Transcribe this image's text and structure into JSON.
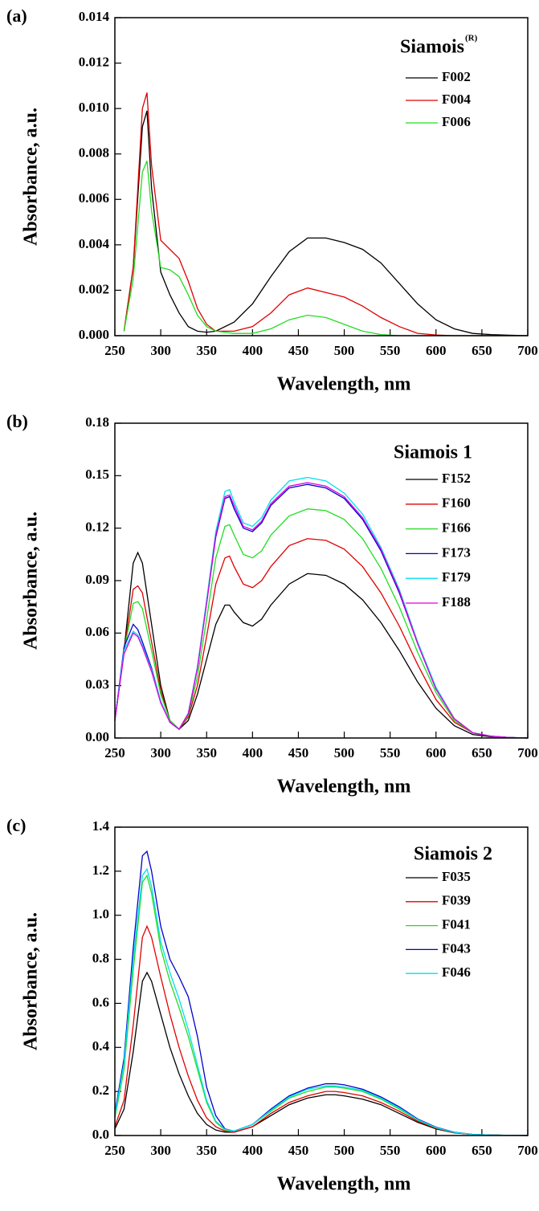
{
  "chart_data": [
    {
      "type": "line",
      "label": "(a)",
      "x_label": "Wavelength, nm",
      "y_label": "Absorbance, a.u.",
      "legend_title": "Siamois",
      "legend_title_sup": "(R)",
      "legend": "upper right",
      "grid": false,
      "xlim": [
        250,
        700
      ],
      "xticks": [
        250,
        300,
        350,
        400,
        450,
        500,
        550,
        600,
        650,
        700
      ],
      "ylim": [
        0,
        0.014
      ],
      "yticks": [
        {
          "value": 0,
          "label": "0.000"
        },
        0.002,
        0.004,
        0.006,
        0.008,
        {
          "value": 0.01,
          "label": "0.010"
        },
        0.012,
        0.014
      ],
      "x": [
        260,
        270,
        280,
        285,
        290,
        300,
        310,
        320,
        330,
        340,
        350,
        360,
        380,
        400,
        420,
        440,
        460,
        480,
        500,
        520,
        540,
        560,
        580,
        600,
        620,
        640,
        660,
        680,
        700
      ],
      "series": [
        {
          "name": "F002",
          "color": "#000000",
          "values": [
            0.0002,
            0.003,
            0.0092,
            0.0099,
            0.0065,
            0.0028,
            0.0018,
            0.001,
            0.0004,
            0.0002,
            0.00015,
            0.0002,
            0.0006,
            0.0014,
            0.0026,
            0.0037,
            0.0043,
            0.0043,
            0.0041,
            0.0038,
            0.0032,
            0.0023,
            0.0014,
            0.0007,
            0.0003,
            0.0001,
            5e-05,
            2e-05,
            0
          ]
        },
        {
          "name": "F004",
          "color": "#e00000",
          "values": [
            0.0002,
            0.003,
            0.01,
            0.0107,
            0.0075,
            0.0042,
            0.0038,
            0.0034,
            0.0024,
            0.0012,
            0.0005,
            0.0002,
            0.0002,
            0.0004,
            0.001,
            0.0018,
            0.0021,
            0.0019,
            0.0017,
            0.0013,
            0.0008,
            0.0004,
            0.0001,
            3e-05,
            0,
            0,
            0,
            0,
            0
          ]
        },
        {
          "name": "F006",
          "color": "#22dd22",
          "values": [
            0.0002,
            0.0025,
            0.0072,
            0.0077,
            0.0055,
            0.003,
            0.0029,
            0.0026,
            0.0018,
            0.0009,
            0.0004,
            0.0002,
            0.0001,
            0.0001,
            0.0003,
            0.0007,
            0.0009,
            0.0008,
            0.0005,
            0.0002,
            5e-05,
            0,
            0,
            0,
            0,
            0,
            0,
            0,
            0
          ]
        }
      ]
    },
    {
      "type": "line",
      "label": "(b)",
      "x_label": "Wavelength, nm",
      "y_label": "Absorbance, a.u.",
      "legend_title": "Siamois 1",
      "legend": "upper right",
      "grid": false,
      "xlim": [
        250,
        700
      ],
      "xticks": [
        250,
        300,
        350,
        400,
        450,
        500,
        550,
        600,
        650,
        700
      ],
      "ylim": [
        0,
        0.18
      ],
      "yticks": [
        {
          "value": 0,
          "label": "0.00"
        },
        0.03,
        0.06,
        0.09,
        0.12,
        0.15,
        0.18
      ],
      "x": [
        250,
        260,
        270,
        275,
        280,
        290,
        300,
        310,
        320,
        330,
        340,
        350,
        360,
        370,
        375,
        380,
        390,
        400,
        410,
        420,
        440,
        460,
        480,
        500,
        520,
        540,
        560,
        580,
        600,
        620,
        640,
        660,
        680,
        700
      ],
      "series": [
        {
          "name": "F152",
          "color": "#000000",
          "values": [
            0.01,
            0.05,
            0.1,
            0.106,
            0.1,
            0.065,
            0.03,
            0.01,
            0.005,
            0.01,
            0.025,
            0.045,
            0.065,
            0.076,
            0.076,
            0.072,
            0.066,
            0.064,
            0.068,
            0.076,
            0.088,
            0.094,
            0.093,
            0.088,
            0.079,
            0.066,
            0.05,
            0.032,
            0.017,
            0.007,
            0.002,
            0.0007,
            0.0002,
            0
          ]
        },
        {
          "name": "F160",
          "color": "#e00000",
          "values": [
            0.01,
            0.05,
            0.085,
            0.087,
            0.083,
            0.055,
            0.027,
            0.01,
            0.005,
            0.012,
            0.03,
            0.058,
            0.088,
            0.103,
            0.104,
            0.098,
            0.088,
            0.086,
            0.09,
            0.098,
            0.11,
            0.114,
            0.113,
            0.108,
            0.098,
            0.083,
            0.064,
            0.042,
            0.022,
            0.009,
            0.003,
            0.001,
            0.0003,
            0
          ]
        },
        {
          "name": "F166",
          "color": "#22dd22",
          "values": [
            0.01,
            0.05,
            0.077,
            0.078,
            0.074,
            0.05,
            0.025,
            0.01,
            0.005,
            0.013,
            0.035,
            0.068,
            0.103,
            0.121,
            0.122,
            0.116,
            0.105,
            0.103,
            0.107,
            0.116,
            0.127,
            0.131,
            0.13,
            0.125,
            0.114,
            0.097,
            0.075,
            0.049,
            0.026,
            0.01,
            0.003,
            0.001,
            0.0003,
            0
          ]
        },
        {
          "name": "F173",
          "color": "#0000cc",
          "values": [
            0.01,
            0.052,
            0.065,
            0.062,
            0.055,
            0.04,
            0.021,
            0.009,
            0.005,
            0.014,
            0.04,
            0.077,
            0.115,
            0.137,
            0.138,
            0.131,
            0.12,
            0.118,
            0.123,
            0.133,
            0.143,
            0.145,
            0.143,
            0.137,
            0.125,
            0.107,
            0.083,
            0.054,
            0.028,
            0.011,
            0.003,
            0.001,
            0.0003,
            0
          ]
        },
        {
          "name": "F179",
          "color": "#00e0f0",
          "values": [
            0.01,
            0.05,
            0.061,
            0.059,
            0.053,
            0.039,
            0.021,
            0.009,
            0.005,
            0.014,
            0.041,
            0.079,
            0.118,
            0.141,
            0.142,
            0.135,
            0.123,
            0.121,
            0.126,
            0.136,
            0.147,
            0.149,
            0.147,
            0.14,
            0.128,
            0.109,
            0.085,
            0.055,
            0.029,
            0.011,
            0.003,
            0.001,
            0.0003,
            0
          ]
        },
        {
          "name": "F188",
          "color": "#dd00dd",
          "values": [
            0.01,
            0.048,
            0.06,
            0.058,
            0.052,
            0.038,
            0.02,
            0.009,
            0.005,
            0.014,
            0.04,
            0.077,
            0.116,
            0.138,
            0.139,
            0.133,
            0.121,
            0.119,
            0.124,
            0.134,
            0.144,
            0.146,
            0.144,
            0.138,
            0.126,
            0.108,
            0.084,
            0.054,
            0.028,
            0.011,
            0.003,
            0.001,
            0.0003,
            0
          ]
        }
      ]
    },
    {
      "type": "line",
      "label": "(c)",
      "x_label": "Wavelength, nm",
      "y_label": "Absorbance, a.u.",
      "legend_title": "Siamois 2",
      "legend": "upper right",
      "grid": false,
      "xlim": [
        250,
        700
      ],
      "xticks": [
        250,
        300,
        350,
        400,
        450,
        500,
        550,
        600,
        650,
        700
      ],
      "ylim": [
        0,
        1.4
      ],
      "yticks": [
        {
          "value": 0,
          "label": "0.0"
        },
        0.2,
        0.4,
        0.6,
        0.8,
        {
          "value": 1,
          "label": "1.0"
        },
        1.2,
        1.4
      ],
      "x": [
        250,
        260,
        270,
        280,
        285,
        290,
        300,
        310,
        320,
        330,
        340,
        350,
        360,
        370,
        380,
        400,
        420,
        440,
        460,
        480,
        490,
        500,
        520,
        540,
        560,
        580,
        600,
        620,
        640,
        660,
        680,
        700
      ],
      "series": [
        {
          "name": "F035",
          "color": "#000000",
          "values": [
            0.03,
            0.12,
            0.38,
            0.7,
            0.74,
            0.7,
            0.55,
            0.4,
            0.28,
            0.18,
            0.1,
            0.05,
            0.025,
            0.015,
            0.015,
            0.04,
            0.09,
            0.14,
            0.17,
            0.185,
            0.185,
            0.18,
            0.165,
            0.14,
            0.1,
            0.06,
            0.03,
            0.012,
            0.005,
            0.002,
            0.001,
            0
          ]
        },
        {
          "name": "F039",
          "color": "#e00000",
          "values": [
            0.04,
            0.16,
            0.5,
            0.9,
            0.95,
            0.9,
            0.72,
            0.55,
            0.4,
            0.27,
            0.16,
            0.08,
            0.04,
            0.02,
            0.015,
            0.04,
            0.1,
            0.15,
            0.18,
            0.2,
            0.2,
            0.195,
            0.18,
            0.15,
            0.11,
            0.065,
            0.033,
            0.013,
            0.005,
            0.002,
            0.001,
            0
          ]
        },
        {
          "name": "F041",
          "color": "#22dd22",
          "values": [
            0.08,
            0.3,
            0.75,
            1.15,
            1.18,
            1.1,
            0.85,
            0.7,
            0.58,
            0.45,
            0.3,
            0.15,
            0.06,
            0.025,
            0.02,
            0.05,
            0.11,
            0.17,
            0.2,
            0.22,
            0.22,
            0.215,
            0.2,
            0.165,
            0.12,
            0.07,
            0.035,
            0.014,
            0.005,
            0.002,
            0.001,
            0
          ]
        },
        {
          "name": "F043",
          "color": "#0000cc",
          "values": [
            0.1,
            0.35,
            0.85,
            1.27,
            1.29,
            1.2,
            0.95,
            0.8,
            0.72,
            0.63,
            0.45,
            0.22,
            0.09,
            0.03,
            0.02,
            0.05,
            0.12,
            0.18,
            0.215,
            0.235,
            0.235,
            0.23,
            0.21,
            0.175,
            0.13,
            0.075,
            0.038,
            0.015,
            0.005,
            0.002,
            0.001,
            0
          ]
        },
        {
          "name": "F046",
          "color": "#00e0f0",
          "values": [
            0.09,
            0.33,
            0.8,
            1.18,
            1.21,
            1.13,
            0.88,
            0.74,
            0.62,
            0.48,
            0.32,
            0.16,
            0.065,
            0.028,
            0.02,
            0.05,
            0.115,
            0.175,
            0.21,
            0.225,
            0.225,
            0.22,
            0.205,
            0.17,
            0.125,
            0.072,
            0.036,
            0.014,
            0.005,
            0.002,
            0.001,
            0
          ]
        }
      ]
    }
  ]
}
